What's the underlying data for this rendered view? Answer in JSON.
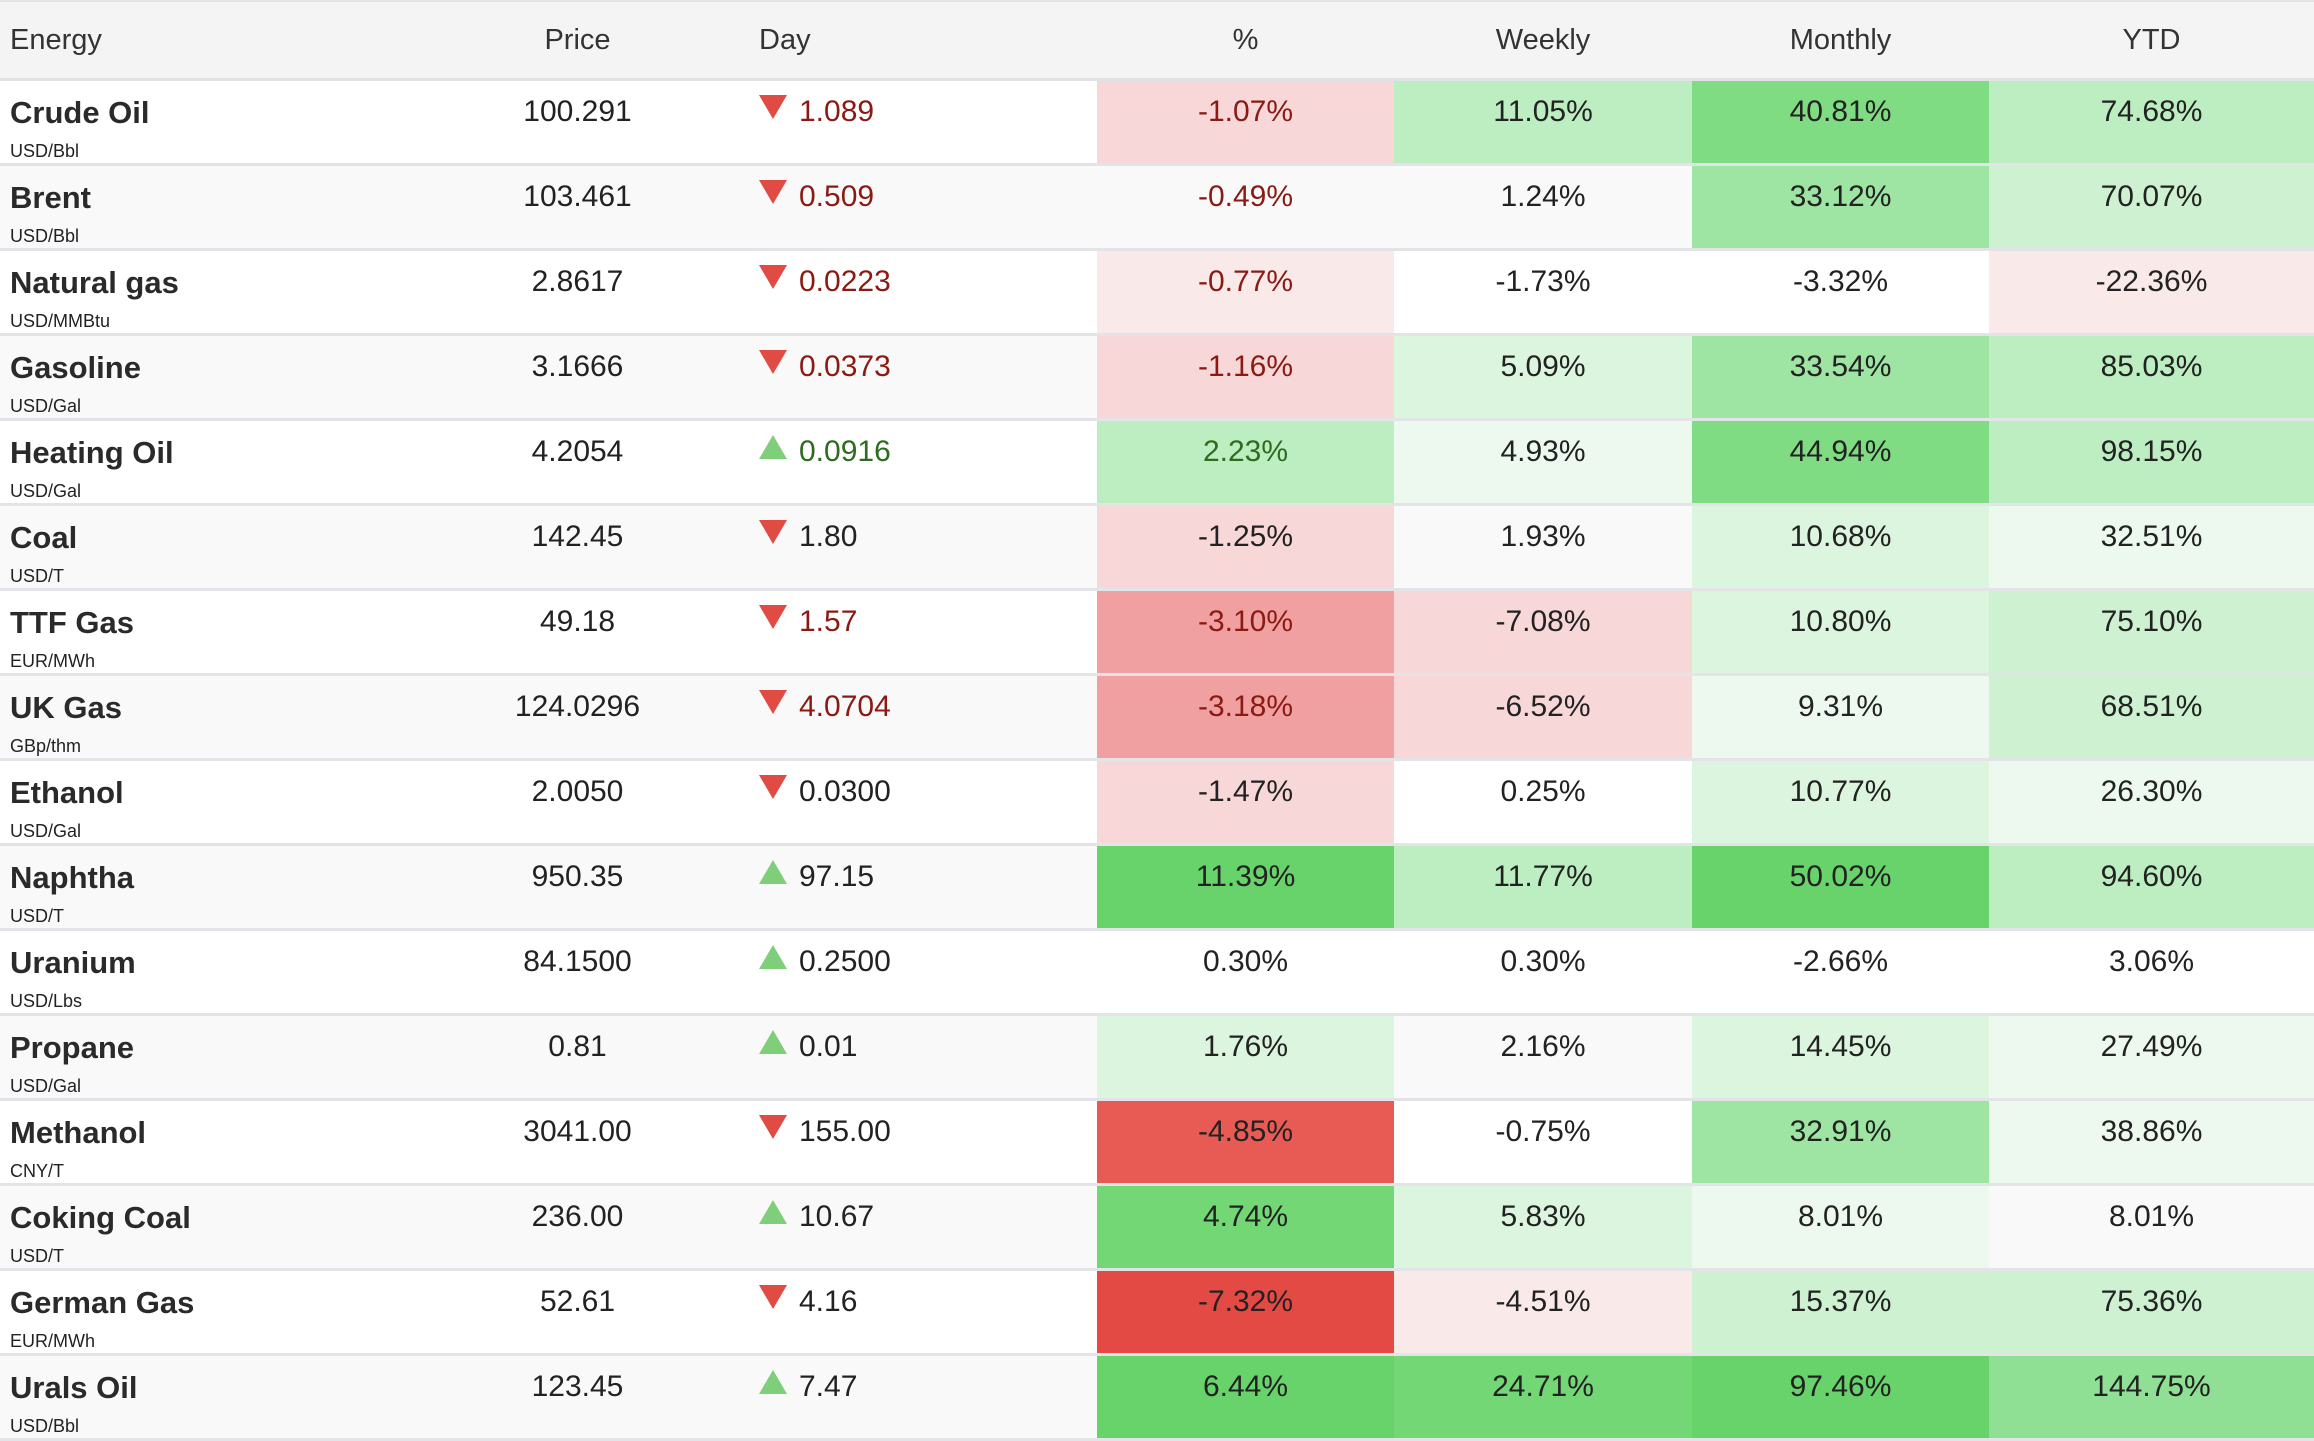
{
  "headers": [
    "Energy",
    "Price",
    "Day",
    "%",
    "Weekly",
    "Monthly",
    "YTD"
  ],
  "colors": {
    "red_text": "#8a1a13",
    "green_text": "#2e6b1f",
    "dark_text": "#222222"
  },
  "rows": [
    {
      "name": "Crude Oil",
      "unit": "USD/Bbl",
      "price": "100.291",
      "dir": "down",
      "day": "1.089",
      "tone": "red",
      "pct": "-1.07%",
      "weekly": "11.05%",
      "monthly": "40.81%",
      "ytd": "74.68%",
      "bg": [
        "#f7d7d7",
        "#bdeec2",
        "#7fdc82",
        "#bdeec2"
      ]
    },
    {
      "name": "Brent",
      "unit": "USD/Bbl",
      "price": "103.461",
      "dir": "down",
      "day": "0.509",
      "tone": "red",
      "pct": "-0.49%",
      "weekly": "1.24%",
      "monthly": "33.12%",
      "ytd": "70.07%",
      "bg": [
        "",
        "",
        "#9ee5a3",
        "#cdf1d1"
      ]
    },
    {
      "name": "Natural gas",
      "unit": "USD/MMBtu",
      "price": "2.8617",
      "dir": "down",
      "day": "0.0223",
      "tone": "red",
      "pct": "-0.77%",
      "weekly": "-1.73%",
      "monthly": "-3.32%",
      "ytd": "-22.36%",
      "bg": [
        "#f9e9e9",
        "",
        "",
        "#f9e9e9"
      ]
    },
    {
      "name": "Gasoline",
      "unit": "USD/Gal",
      "price": "3.1666",
      "dir": "down",
      "day": "0.0373",
      "tone": "red",
      "pct": "-1.16%",
      "weekly": "5.09%",
      "monthly": "33.54%",
      "ytd": "85.03%",
      "bg": [
        "#f7d7d7",
        "#dcf5df",
        "#9ee5a3",
        "#bdeec2"
      ]
    },
    {
      "name": "Heating Oil",
      "unit": "USD/Gal",
      "price": "4.2054",
      "dir": "up",
      "day": "0.0916",
      "tone": "green",
      "pct": "2.23%",
      "weekly": "4.93%",
      "monthly": "44.94%",
      "ytd": "98.15%",
      "bg": [
        "#bdeec2",
        "#edf9ef",
        "#7fdc82",
        "#bdeec2"
      ]
    },
    {
      "name": "Coal",
      "unit": "USD/T",
      "price": "142.45",
      "dir": "down",
      "day": "1.80",
      "tone": "dark",
      "pct": "-1.25%",
      "weekly": "1.93%",
      "monthly": "10.68%",
      "ytd": "32.51%",
      "bg": [
        "#f7d7d7",
        "",
        "#dcf5df",
        "#edf9ef"
      ]
    },
    {
      "name": "TTF Gas",
      "unit": "EUR/MWh",
      "price": "49.18",
      "dir": "down",
      "day": "1.57",
      "tone": "red",
      "pct": "-3.10%",
      "weekly": "-7.08%",
      "monthly": "10.80%",
      "ytd": "75.10%",
      "bg": [
        "#f0a0a0",
        "#f7d7d7",
        "#dcf5df",
        "#cdf1d1"
      ]
    },
    {
      "name": "UK Gas",
      "unit": "GBp/thm",
      "price": "124.0296",
      "dir": "down",
      "day": "4.0704",
      "tone": "red",
      "pct": "-3.18%",
      "weekly": "-6.52%",
      "monthly": "9.31%",
      "ytd": "68.51%",
      "bg": [
        "#f0a0a0",
        "#f7d7d7",
        "#edf9ef",
        "#cdf1d1"
      ]
    },
    {
      "name": "Ethanol",
      "unit": "USD/Gal",
      "price": "2.0050",
      "dir": "down",
      "day": "0.0300",
      "tone": "dark",
      "pct": "-1.47%",
      "weekly": "0.25%",
      "monthly": "10.77%",
      "ytd": "26.30%",
      "bg": [
        "#f7d7d7",
        "",
        "#dcf5df",
        "#edf9ef"
      ]
    },
    {
      "name": "Naphtha",
      "unit": "USD/T",
      "price": "950.35",
      "dir": "up",
      "day": "97.15",
      "tone": "dark",
      "pct": "11.39%",
      "weekly": "11.77%",
      "monthly": "50.02%",
      "ytd": "94.60%",
      "bg": [
        "#68d36b",
        "#bdeec2",
        "#68d36b",
        "#bdeec2"
      ]
    },
    {
      "name": "Uranium",
      "unit": "USD/Lbs",
      "price": "84.1500",
      "dir": "up",
      "day": "0.2500",
      "tone": "dark",
      "pct": "0.30%",
      "weekly": "0.30%",
      "monthly": "-2.66%",
      "ytd": "3.06%",
      "bg": [
        "",
        "",
        "",
        ""
      ]
    },
    {
      "name": "Propane",
      "unit": "USD/Gal",
      "price": "0.81",
      "dir": "up",
      "day": "0.01",
      "tone": "dark",
      "pct": "1.76%",
      "weekly": "2.16%",
      "monthly": "14.45%",
      "ytd": "27.49%",
      "bg": [
        "#dcf5df",
        "",
        "#dcf5df",
        "#edf9ef"
      ]
    },
    {
      "name": "Methanol",
      "unit": "CNY/T",
      "price": "3041.00",
      "dir": "down",
      "day": "155.00",
      "tone": "dark",
      "pct": "-4.85%",
      "weekly": "-0.75%",
      "monthly": "32.91%",
      "ytd": "38.86%",
      "bg": [
        "#e85b55",
        "",
        "#9ee5a3",
        "#edf9ef"
      ]
    },
    {
      "name": "Coking Coal",
      "unit": "USD/T",
      "price": "236.00",
      "dir": "up",
      "day": "10.67",
      "tone": "dark",
      "pct": "4.74%",
      "weekly": "5.83%",
      "monthly": "8.01%",
      "ytd": "8.01%",
      "bg": [
        "#73d776",
        "#dcf5df",
        "#edf9ef",
        ""
      ]
    },
    {
      "name": "German Gas",
      "unit": "EUR/MWh",
      "price": "52.61",
      "dir": "down",
      "day": "4.16",
      "tone": "dark",
      "pct": "-7.32%",
      "weekly": "-4.51%",
      "monthly": "15.37%",
      "ytd": "75.36%",
      "bg": [
        "#e34a44",
        "#f9e9e9",
        "#cdf1d1",
        "#cdf1d1"
      ]
    },
    {
      "name": "Urals Oil",
      "unit": "USD/Bbl",
      "price": "123.45",
      "dir": "up",
      "day": "7.47",
      "tone": "dark",
      "pct": "6.44%",
      "weekly": "24.71%",
      "monthly": "97.46%",
      "ytd": "144.75%",
      "bg": [
        "#68d36b",
        "#73d776",
        "#68d36b",
        "#8fe095"
      ]
    }
  ]
}
